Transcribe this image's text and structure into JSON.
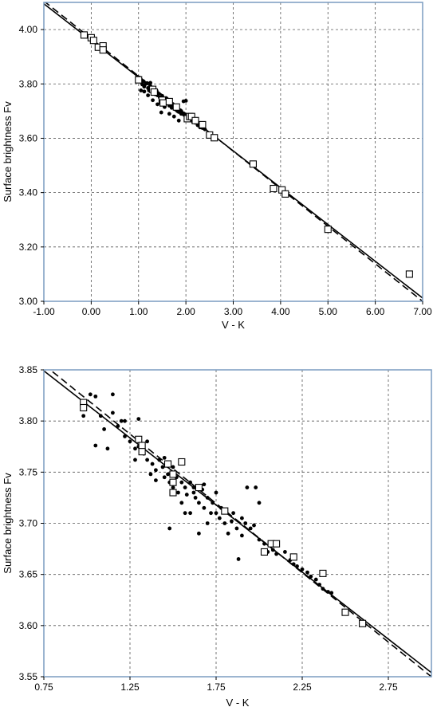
{
  "chart_data": [
    {
      "type": "scatter",
      "xlabel": "V - K",
      "ylabel": "Surface brightness Fv",
      "xlim": [
        -1.0,
        7.0
      ],
      "ylim": [
        3.0,
        4.1
      ],
      "x_ticks": [
        -1.0,
        0.0,
        1.0,
        2.0,
        3.0,
        4.0,
        5.0,
        6.0,
        7.0
      ],
      "x_tick_labels": [
        "-1.00",
        "0.00",
        "1.00",
        "2.00",
        "3.00",
        "4.00",
        "5.00",
        "6.00",
        "7.00"
      ],
      "y_ticks": [
        3.0,
        3.2,
        3.4,
        3.6,
        3.8,
        4.0
      ],
      "y_tick_labels": [
        "3.00",
        "3.20",
        "3.40",
        "3.60",
        "3.80",
        "4.00"
      ],
      "grid": true,
      "series": [
        {
          "marker": "dot",
          "points": [
            [
              0.98,
              3.826
            ],
            [
              1.02,
              3.823
            ],
            [
              1.05,
              3.812
            ],
            [
              1.08,
              3.798
            ],
            [
              1.1,
              3.81
            ],
            [
              1.12,
              3.79
            ],
            [
              1.15,
              3.8
            ],
            [
              1.18,
              3.803
            ],
            [
              1.2,
              3.785
            ],
            [
              1.22,
              3.776
            ],
            [
              1.25,
              3.792
            ],
            [
              1.28,
              3.782
            ],
            [
              1.3,
              3.77
            ],
            [
              1.32,
              3.778
            ],
            [
              1.35,
              3.765
            ],
            [
              1.38,
              3.775
            ],
            [
              1.4,
              3.758
            ],
            [
              1.42,
              3.762
            ],
            [
              1.45,
              3.75
            ],
            [
              1.48,
              3.744
            ],
            [
              1.5,
              3.756
            ],
            [
              1.52,
              3.74
            ],
            [
              1.55,
              3.735
            ],
            [
              1.58,
              3.748
            ],
            [
              1.6,
              3.73
            ],
            [
              1.62,
              3.738
            ],
            [
              1.65,
              3.72
            ],
            [
              1.68,
              3.732
            ],
            [
              1.7,
              3.712
            ],
            [
              1.72,
              3.726
            ],
            [
              1.75,
              3.718
            ],
            [
              1.78,
              3.706
            ],
            [
              1.8,
              3.71
            ],
            [
              1.82,
              3.7
            ],
            [
              1.85,
              3.697
            ],
            [
              1.88,
              3.703
            ],
            [
              1.9,
              3.69
            ],
            [
              1.92,
              3.693
            ],
            [
              1.95,
              3.688
            ],
            [
              1.98,
              3.684
            ],
            [
              2.0,
              3.678
            ],
            [
              2.02,
              3.672
            ],
            [
              2.05,
              3.68
            ],
            [
              2.1,
              3.668
            ],
            [
              2.15,
              3.66
            ],
            [
              2.2,
              3.657
            ],
            [
              2.25,
              3.648
            ],
            [
              2.3,
              3.64
            ],
            [
              2.35,
              3.638
            ],
            [
              2.4,
              3.633
            ],
            [
              1.05,
              3.776
            ],
            [
              1.12,
              3.772
            ],
            [
              1.2,
              3.758
            ],
            [
              1.3,
              3.74
            ],
            [
              1.4,
              3.725
            ],
            [
              1.48,
              3.695
            ],
            [
              1.55,
              3.715
            ],
            [
              1.65,
              3.69
            ],
            [
              1.75,
              3.68
            ],
            [
              1.85,
              3.665
            ],
            [
              1.95,
              3.736
            ],
            [
              2.0,
              3.738
            ],
            [
              1.25,
              3.804
            ],
            [
              1.35,
              3.762
            ],
            [
              1.6,
              3.745
            ],
            [
              1.7,
              3.724
            ],
            [
              1.8,
              3.705
            ],
            [
              1.9,
              3.7
            ],
            [
              2.05,
              3.671
            ],
            [
              2.18,
              3.668
            ]
          ]
        },
        {
          "marker": "open-square",
          "points": [
            [
              -0.15,
              3.98
            ],
            [
              0.0,
              3.97
            ],
            [
              0.05,
              3.96
            ],
            [
              0.15,
              3.935
            ],
            [
              0.25,
              3.94
            ],
            [
              0.25,
              3.925
            ],
            [
              1.0,
              3.815
            ],
            [
              1.3,
              3.78
            ],
            [
              1.33,
              3.77
            ],
            [
              1.5,
              3.74
            ],
            [
              1.52,
              3.73
            ],
            [
              1.65,
              3.735
            ],
            [
              1.8,
              3.715
            ],
            [
              2.03,
              3.672
            ],
            [
              2.08,
              3.68
            ],
            [
              2.12,
              3.68
            ],
            [
              2.2,
              3.665
            ],
            [
              2.35,
              3.65
            ],
            [
              2.5,
              3.612
            ],
            [
              2.6,
              3.602
            ],
            [
              3.42,
              3.505
            ],
            [
              3.85,
              3.415
            ],
            [
              4.03,
              3.41
            ],
            [
              4.1,
              3.395
            ],
            [
              5.0,
              3.265
            ],
            [
              6.72,
              3.1
            ]
          ]
        },
        {
          "marker": "solid-line",
          "points": [
            [
              -1.0,
              4.095
            ],
            [
              7.0,
              3.012
            ]
          ]
        },
        {
          "marker": "dashed-line",
          "points": [
            [
              -1.0,
              4.105
            ],
            [
              7.0,
              3.0
            ]
          ]
        }
      ]
    },
    {
      "type": "scatter",
      "xlabel": "V - K",
      "ylabel": "Surface brightness Fv",
      "xlim": [
        0.75,
        3.0
      ],
      "ylim": [
        3.55,
        3.85
      ],
      "x_ticks": [
        0.75,
        1.25,
        1.75,
        2.25,
        2.75
      ],
      "x_tick_labels": [
        "0.75",
        "1.25",
        "1.75",
        "2.25",
        "2.75"
      ],
      "y_ticks": [
        3.55,
        3.6,
        3.65,
        3.7,
        3.75,
        3.8,
        3.85
      ],
      "y_tick_labels": [
        "3.55",
        "3.60",
        "3.65",
        "3.70",
        "3.75",
        "3.80",
        "3.85"
      ],
      "grid": true,
      "series": [
        {
          "marker": "dot",
          "points": [
            [
              0.98,
              3.805
            ],
            [
              0.98,
              3.812
            ],
            [
              1.02,
              3.826
            ],
            [
              1.05,
              3.824
            ],
            [
              1.05,
              3.776
            ],
            [
              1.08,
              3.805
            ],
            [
              1.1,
              3.792
            ],
            [
              1.12,
              3.773
            ],
            [
              1.15,
              3.826
            ],
            [
              1.15,
              3.808
            ],
            [
              1.18,
              3.795
            ],
            [
              1.2,
              3.8
            ],
            [
              1.22,
              3.8
            ],
            [
              1.22,
              3.785
            ],
            [
              1.25,
              3.78
            ],
            [
              1.28,
              3.773
            ],
            [
              1.28,
              3.762
            ],
            [
              1.3,
              3.802
            ],
            [
              1.3,
              3.775
            ],
            [
              1.33,
              3.768
            ],
            [
              1.35,
              3.762
            ],
            [
              1.35,
              3.78
            ],
            [
              1.38,
              3.758
            ],
            [
              1.4,
              3.752
            ],
            [
              1.4,
              3.742
            ],
            [
              1.42,
              3.762
            ],
            [
              1.44,
              3.755
            ],
            [
              1.45,
              3.745
            ],
            [
              1.47,
              3.748
            ],
            [
              1.48,
              3.74
            ],
            [
              1.48,
              3.695
            ],
            [
              1.5,
              3.755
            ],
            [
              1.5,
              3.735
            ],
            [
              1.52,
              3.745
            ],
            [
              1.53,
              3.73
            ],
            [
              1.55,
              3.74
            ],
            [
              1.55,
              3.72
            ],
            [
              1.57,
              3.735
            ],
            [
              1.58,
              3.728
            ],
            [
              1.6,
              3.74
            ],
            [
              1.6,
              3.71
            ],
            [
              1.62,
              3.73
            ],
            [
              1.63,
              3.725
            ],
            [
              1.65,
              3.72
            ],
            [
              1.65,
              3.69
            ],
            [
              1.67,
              3.733
            ],
            [
              1.68,
              3.715
            ],
            [
              1.7,
              3.725
            ],
            [
              1.7,
              3.7
            ],
            [
              1.72,
              3.71
            ],
            [
              1.73,
              3.72
            ],
            [
              1.75,
              3.71
            ],
            [
              1.75,
              3.73
            ],
            [
              1.77,
              3.705
            ],
            [
              1.78,
              3.715
            ],
            [
              1.8,
              3.7
            ],
            [
              1.8,
              3.712
            ],
            [
              1.82,
              3.69
            ],
            [
              1.84,
              3.702
            ],
            [
              1.85,
              3.71
            ],
            [
              1.87,
              3.695
            ],
            [
              1.88,
              3.665
            ],
            [
              1.9,
              3.705
            ],
            [
              1.9,
              3.688
            ],
            [
              1.92,
              3.7
            ],
            [
              1.93,
              3.735
            ],
            [
              1.95,
              3.695
            ],
            [
              1.97,
              3.698
            ],
            [
              1.98,
              3.735
            ],
            [
              2.0,
              3.72
            ],
            [
              2.0,
              3.684
            ],
            [
              2.03,
              3.68
            ],
            [
              2.05,
              3.672
            ],
            [
              2.08,
              3.674
            ],
            [
              2.1,
              3.67
            ],
            [
              2.15,
              3.672
            ],
            [
              2.18,
              3.664
            ],
            [
              2.2,
              3.66
            ],
            [
              2.22,
              3.658
            ],
            [
              2.25,
              3.655
            ],
            [
              2.28,
              3.652
            ],
            [
              2.3,
              3.648
            ],
            [
              2.33,
              3.645
            ],
            [
              2.35,
              3.64
            ],
            [
              2.37,
              3.636
            ],
            [
              2.4,
              3.633
            ],
            [
              2.42,
              3.632
            ],
            [
              1.62,
              3.735
            ],
            [
              1.57,
              3.71
            ],
            [
              1.68,
              3.738
            ],
            [
              1.45,
              3.764
            ],
            [
              1.37,
              3.748
            ]
          ]
        },
        {
          "marker": "open-square",
          "points": [
            [
              0.98,
              3.818
            ],
            [
              0.98,
              3.813
            ],
            [
              1.3,
              3.782
            ],
            [
              1.32,
              3.776
            ],
            [
              1.32,
              3.77
            ],
            [
              1.47,
              3.758
            ],
            [
              1.5,
              3.748
            ],
            [
              1.5,
              3.74
            ],
            [
              1.5,
              3.73
            ],
            [
              1.55,
              3.76
            ],
            [
              1.65,
              3.735
            ],
            [
              1.8,
              3.712
            ],
            [
              2.03,
              3.672
            ],
            [
              2.07,
              3.68
            ],
            [
              2.1,
              3.68
            ],
            [
              2.2,
              3.667
            ],
            [
              2.37,
              3.651
            ],
            [
              2.5,
              3.613
            ],
            [
              2.6,
              3.602
            ]
          ]
        },
        {
          "marker": "solid-line",
          "points": [
            [
              0.75,
              3.849
            ],
            [
              3.0,
              3.554
            ]
          ]
        },
        {
          "marker": "dashed-line",
          "points": [
            [
              0.75,
              3.855
            ],
            [
              3.0,
              3.55
            ]
          ]
        }
      ]
    }
  ]
}
